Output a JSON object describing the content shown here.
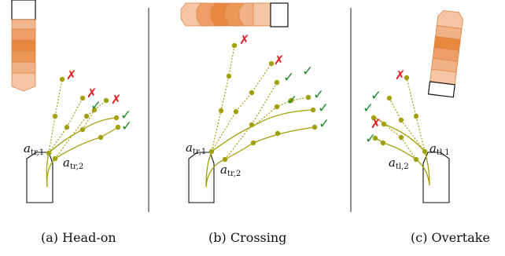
{
  "colors": {
    "path": "#a3a10b",
    "node": "#a3a10b",
    "ship_outline": "#111111",
    "ok_mark": "#1e8a2a",
    "bad_mark": "#e01b1b",
    "ship_dark": "#e07a2f",
    "ship_light": "#f5c3a0",
    "divider": "#222222"
  },
  "panels": [
    {
      "caption": "(a) Head-on",
      "labels": [
        {
          "main": "a",
          "sub": "tr,1"
        },
        {
          "main": "a",
          "sub": "tr,2"
        }
      ],
      "marks": [
        "bad",
        "bad",
        "ok",
        "bad",
        "ok",
        "ok"
      ]
    },
    {
      "caption": "(b) Crossing",
      "labels": [
        {
          "main": "a",
          "sub": "tr,1"
        },
        {
          "main": "a",
          "sub": "tr,2"
        }
      ],
      "marks": [
        "bad",
        "bad",
        "ok",
        "ok",
        "ok",
        "ok",
        "ok",
        "ok"
      ]
    },
    {
      "caption": "(c) Overtake",
      "labels": [
        {
          "main": "a",
          "sub": "tl,1"
        },
        {
          "main": "a",
          "sub": "tl,2"
        }
      ],
      "marks": [
        "bad",
        "ok",
        "ok",
        "bad",
        "ok"
      ]
    }
  ],
  "symbols": {
    "ok": "✓",
    "bad": "✗"
  }
}
